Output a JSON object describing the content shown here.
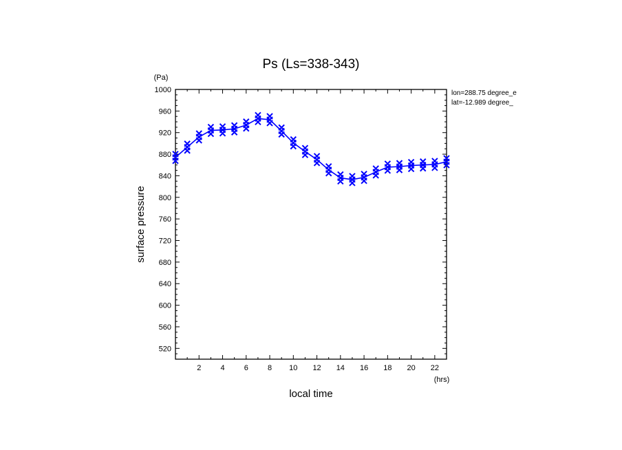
{
  "chart_data": {
    "type": "line",
    "title": "Ps (Ls=338-343)",
    "xlabel": "local time",
    "ylabel": "surface pressure",
    "x_unit": "(hrs)",
    "y_unit": "(Pa)",
    "xlim": [
      0,
      23
    ],
    "ylim": [
      500,
      1000
    ],
    "x_ticks": [
      2,
      4,
      6,
      8,
      10,
      12,
      14,
      16,
      18,
      20,
      22
    ],
    "y_ticks": [
      520,
      560,
      600,
      640,
      680,
      720,
      760,
      800,
      840,
      880,
      920,
      960,
      1000
    ],
    "annotations": [
      "lon=288.75 degree_e",
      "lat=-12.989 degree_"
    ],
    "line_color": "#0000ff",
    "marker": "x",
    "series": [
      {
        "x": [
          0,
          1,
          2,
          3,
          4,
          5,
          6,
          7,
          8,
          9,
          10,
          11,
          12,
          13,
          14,
          15,
          16,
          17,
          18,
          19,
          20,
          21,
          22,
          23
        ],
        "values": [
          874,
          893,
          912,
          924,
          925,
          927,
          934,
          946,
          944,
          923,
          901,
          885,
          870,
          851,
          836,
          833,
          837,
          847,
          856,
          857,
          859,
          860,
          861,
          866
        ]
      }
    ]
  }
}
